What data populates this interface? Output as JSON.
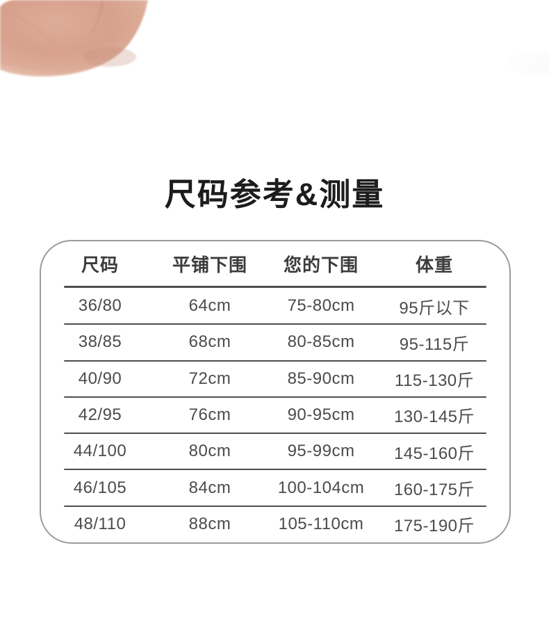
{
  "title": "尺码参考&测量",
  "decor": {
    "hand_image": "hand-photo-fragment",
    "skin_mid": "#d7a18c",
    "skin_light": "#f2dccd"
  },
  "colors": {
    "title_text": "#1c1c1c",
    "header_text": "#3c3c3c",
    "cell_text": "#4b4b4b",
    "line": "#4e4e4e",
    "border": "#9b9b9b"
  },
  "size_table": {
    "columns": [
      "尺码",
      "平铺下围",
      "您的下围",
      "体重"
    ],
    "rows": [
      [
        "36/80",
        "64cm",
        "75-80cm",
        "95斤以下"
      ],
      [
        "38/85",
        "68cm",
        "80-85cm",
        "95-115斤"
      ],
      [
        "40/90",
        "72cm",
        "85-90cm",
        "115-130斤"
      ],
      [
        "42/95",
        "76cm",
        "90-95cm",
        "130-145斤"
      ],
      [
        "44/100",
        "80cm",
        "95-99cm",
        "145-160斤"
      ],
      [
        "46/105",
        "84cm",
        "100-104cm",
        "160-175斤"
      ],
      [
        "48/110",
        "88cm",
        "105-110cm",
        "175-190斤"
      ]
    ]
  }
}
